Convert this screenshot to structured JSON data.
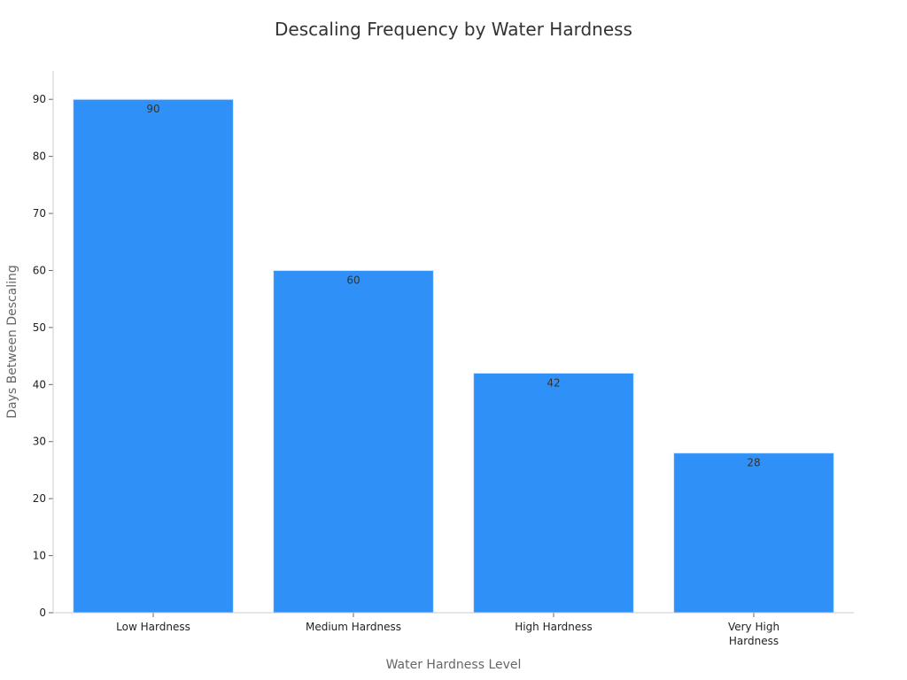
{
  "chart_data": {
    "type": "bar",
    "title": "Descaling Frequency by Water Hardness",
    "xlabel": "Water Hardness Level",
    "ylabel": "Days Between Descaling",
    "categories": [
      [
        "Low Hardness"
      ],
      [
        "Medium Hardness"
      ],
      [
        "High Hardness"
      ],
      [
        "Very High",
        "Hardness"
      ]
    ],
    "values": [
      90,
      60,
      42,
      28
    ],
    "ylim": [
      0,
      95
    ],
    "yticks": [
      0,
      10,
      20,
      30,
      40,
      50,
      60,
      70,
      80,
      90
    ],
    "bar_color": "#2f91f7",
    "grid": false,
    "legend": "none"
  }
}
